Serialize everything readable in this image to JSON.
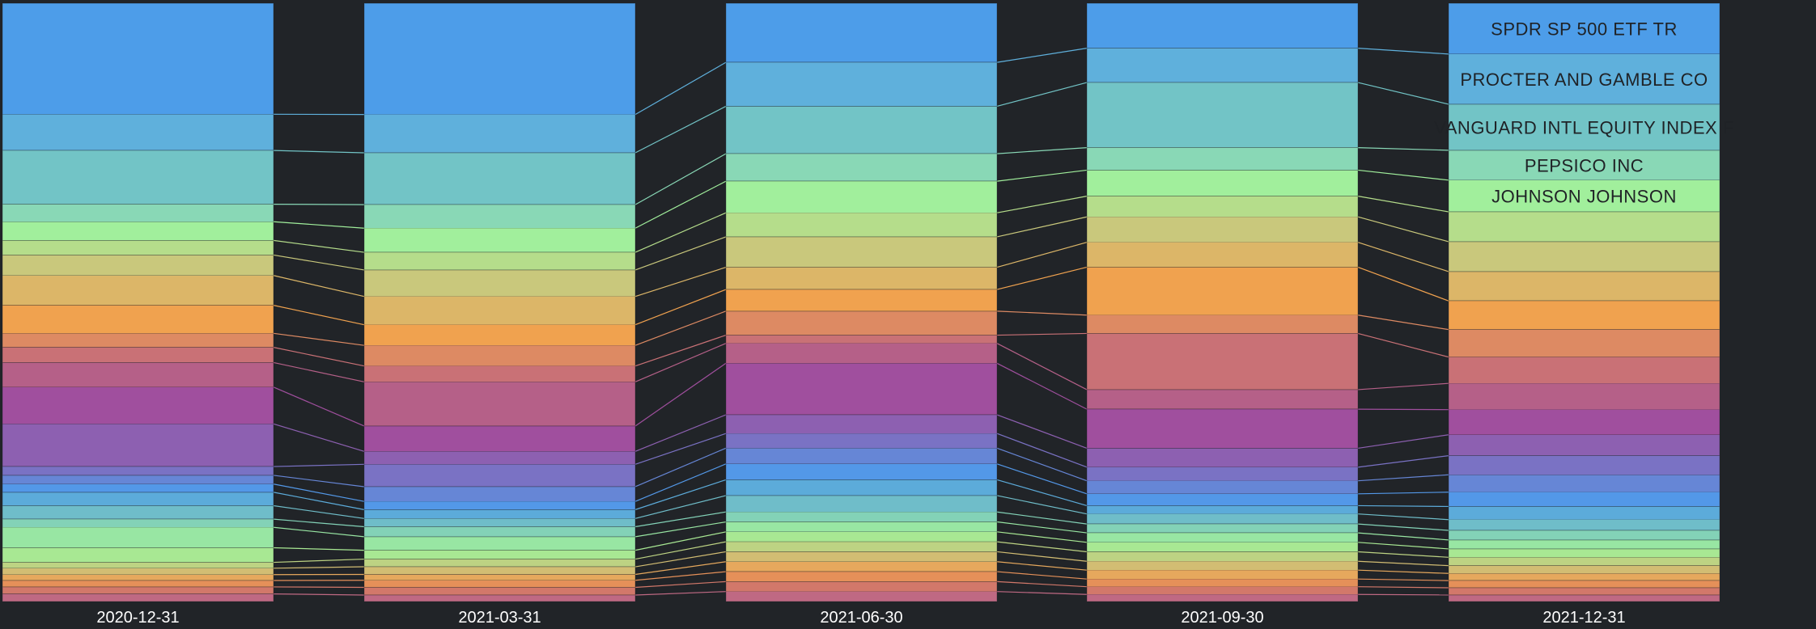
{
  "chart_data": {
    "type": "bar",
    "stacking": "percent",
    "background": "#212428",
    "categories": [
      "2020-12-31",
      "2021-03-31",
      "2021-06-30",
      "2021-09-30",
      "2021-12-31"
    ],
    "labeled_holdings": [
      "SPDR SP 500 ETF TR",
      "PROCTER AND GAMBLE CO",
      "VANGUARD INTL EQUITY INDEX F",
      "PEPSICO INC",
      "JOHNSON JOHNSON"
    ],
    "segment_shares": [
      [
        19.0,
        6.2,
        9.2,
        3.0,
        3.2,
        2.5,
        3.5,
        5.1,
        4.8,
        2.4,
        2.6,
        4.2,
        6.3,
        7.3,
        1.5,
        1.5,
        1.4,
        2.3,
        2.3,
        1.4,
        3.5,
        2.5,
        1.0,
        1.1,
        1.0,
        1.1,
        1.2,
        1.3
      ],
      [
        18.9,
        6.5,
        8.8,
        4.0,
        4.1,
        3.0,
        4.5,
        4.8,
        3.5,
        3.5,
        2.7,
        7.5,
        4.3,
        2.2,
        3.8,
        2.5,
        1.4,
        1.5,
        1.4,
        1.7,
        2.3,
        1.5,
        1.3,
        1.3,
        1.0,
        1.2,
        1.3,
        1.1
      ],
      [
        10.1,
        7.5,
        8.1,
        4.7,
        5.4,
        4.1,
        5.2,
        3.8,
        3.7,
        4.1,
        1.4,
        3.4,
        8.8,
        3.2,
        2.5,
        2.7,
        2.7,
        2.7,
        2.8,
        1.7,
        1.7,
        1.7,
        1.7,
        1.7,
        1.7,
        1.7,
        1.7,
        1.7
      ],
      [
        7.6,
        5.8,
        11.0,
        3.8,
        4.4,
        3.5,
        4.3,
        4.2,
        8.1,
        3.1,
        9.5,
        3.3,
        6.6,
        3.2,
        2.3,
        2.2,
        2.0,
        1.4,
        1.7,
        1.5,
        1.6,
        1.6,
        1.6,
        1.5,
        1.5,
        1.3,
        1.3,
        1.2
      ],
      [
        8.5,
        8.4,
        7.7,
        5.0,
        5.3,
        5.0,
        5.0,
        4.9,
        4.8,
        4.6,
        4.4,
        4.4,
        4.2,
        3.5,
        3.2,
        2.9,
        2.4,
        2.2,
        1.8,
        1.6,
        1.5,
        1.4,
        1.4,
        1.3,
        1.2,
        1.2,
        1.2,
        1.1
      ]
    ],
    "segment_colors": [
      "#4d9de9",
      "#5fb0dc",
      "#72c4c6",
      "#89d8b6",
      "#a1ef9c",
      "#b5dd8b",
      "#c9c87c",
      "#dcb668",
      "#f0a24f",
      "#dd8a63",
      "#c97176",
      "#b56088",
      "#a04f9e",
      "#8d60b1",
      "#7a72c4",
      "#6686d6",
      "#5398e8",
      "#5cabda",
      "#6fbdc9",
      "#83d2b7",
      "#98e6a3",
      "#a8e893",
      "#bdd383",
      "#d2bd73",
      "#e6a85d",
      "#e59059",
      "#d2786a",
      "#bf6983"
    ],
    "legend": "none",
    "grid": false
  }
}
